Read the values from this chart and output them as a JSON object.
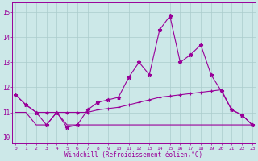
{
  "x": [
    0,
    1,
    2,
    3,
    4,
    5,
    6,
    7,
    8,
    9,
    10,
    11,
    12,
    13,
    14,
    15,
    16,
    17,
    18,
    19,
    20,
    21,
    22,
    23
  ],
  "line1": [
    11.7,
    11.3,
    11.0,
    10.5,
    11.0,
    10.4,
    10.5,
    11.1,
    11.4,
    11.5,
    11.6,
    12.4,
    13.0,
    12.5,
    14.3,
    14.85,
    13.0,
    13.3,
    13.7,
    12.5,
    11.85,
    11.1,
    10.9,
    10.5
  ],
  "line2": [
    11.7,
    11.3,
    11.0,
    11.0,
    11.0,
    11.0,
    11.0,
    11.0,
    11.1,
    11.15,
    11.2,
    11.3,
    11.4,
    11.5,
    11.6,
    11.65,
    11.7,
    11.75,
    11.8,
    11.85,
    11.9,
    11.1,
    10.9,
    10.5
  ],
  "line3": [
    11.0,
    11.0,
    10.5,
    10.5,
    11.0,
    10.5,
    10.5,
    10.5,
    10.5,
    10.5,
    10.5,
    10.5,
    10.5,
    10.5,
    10.5,
    10.5,
    10.5,
    10.5,
    10.5,
    10.5,
    10.5,
    10.5,
    10.5,
    10.5
  ],
  "color": "#990099",
  "bg_color": "#cce8e8",
  "grid_color": "#aacccc",
  "ylim_min": 9.75,
  "ylim_max": 15.4,
  "yticks": [
    10,
    11,
    12,
    13,
    14,
    15
  ],
  "xlabel": "Windchill (Refroidissement éolien,°C)",
  "font_color": "#990099"
}
